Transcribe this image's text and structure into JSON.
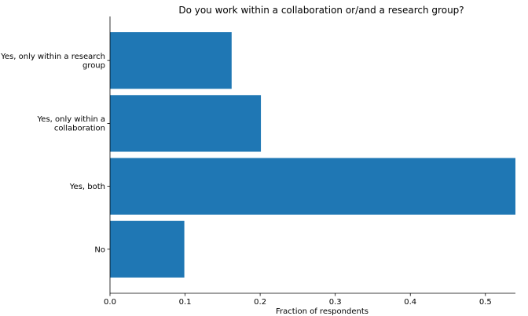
{
  "chart_data": {
    "type": "bar",
    "orientation": "horizontal",
    "title": "Do you work within a collaboration or/and a research group?",
    "xlabel": "Fraction of respondents",
    "ylabel": "",
    "xlim": [
      0,
      0.54
    ],
    "xticks": [
      "0.0",
      "0.1",
      "0.2",
      "0.3",
      "0.4",
      "0.5"
    ],
    "categories": [
      [
        "Yes, only within a research",
        "group"
      ],
      [
        "Yes, only within a",
        "collaboration"
      ],
      [
        "Yes, both"
      ],
      [
        "No"
      ]
    ],
    "values": [
      0.162,
      0.201,
      0.54,
      0.099
    ],
    "bar_color": "#1f77b4",
    "grid": false,
    "legend": "none"
  }
}
